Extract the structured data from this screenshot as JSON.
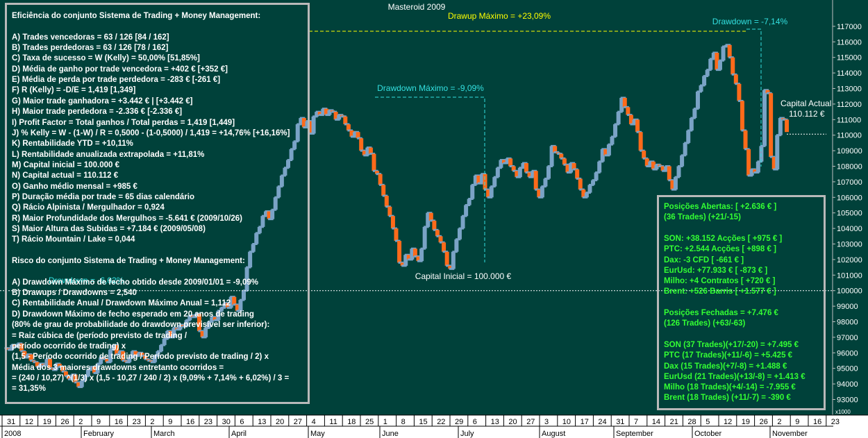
{
  "chart_data": {
    "type": "line",
    "title": "Masteroid 2009",
    "ylim": [
      92500,
      117600
    ],
    "y_ticks": [
      93000,
      94000,
      95000,
      96000,
      97000,
      98000,
      99000,
      100000,
      101000,
      102000,
      103000,
      104000,
      105000,
      106000,
      107000,
      108000,
      109000,
      110000,
      111000,
      112000,
      113000,
      114000,
      115000,
      116000,
      117000
    ],
    "y_tick_labels": [
      "93000",
      "94000",
      "95000",
      "96000",
      "97000",
      "98000",
      "99000",
      "100000",
      "101000",
      "102000",
      "103000",
      "104000",
      "105000",
      "106000",
      "107000",
      "108000",
      "109000",
      "110000",
      "111000",
      "112000",
      "113000",
      "114000",
      "115000",
      "116000",
      "117000"
    ],
    "y_scale_label": "x1000",
    "x_tick_labels": [
      "31",
      "12",
      "19",
      "26",
      "2",
      "9",
      "16",
      "23",
      "2",
      "9",
      "16",
      "23",
      "30",
      "6",
      "13",
      "20",
      "27",
      "4",
      "11",
      "18",
      "25",
      "1",
      "8",
      "15",
      "22",
      "29",
      "6",
      "13",
      "20",
      "27",
      "3",
      "10",
      "17",
      "24",
      "31",
      "7",
      "14",
      "21",
      "28",
      "5",
      "12",
      "19",
      "26",
      "2",
      "9",
      "16",
      "23"
    ],
    "x_month_labels": [
      "2008",
      "February",
      "March",
      "April",
      "May",
      "June",
      "July",
      "August",
      "September",
      "October",
      "November"
    ],
    "series": [
      {
        "colors": {
          "up": "#7aa3c6",
          "down": "#ff6a1a"
        },
        "values": [
          96300,
          96200,
          96500,
          96400,
          96600,
          96100,
          95700,
          95900,
          95500,
          95400,
          95100,
          95300,
          95200,
          95600,
          95000,
          94900,
          95300,
          95100,
          94800,
          94500,
          94300,
          94600,
          94100,
          93800,
          94200,
          94500,
          94900,
          95100,
          94700,
          95300,
          95700,
          95600,
          95400,
          96200,
          96500,
          95900,
          96100,
          95500,
          95400,
          95700,
          96100,
          95800,
          96000,
          95800,
          95600,
          95500,
          95400,
          95800,
          96100,
          96500,
          96900,
          97400,
          97000,
          97600,
          97500,
          97800,
          97700,
          98100,
          98400,
          98300,
          98500,
          97400,
          97000,
          97600,
          98000,
          98300,
          98100,
          98700,
          98900,
          99200,
          98900,
          99600,
          99100,
          98700,
          99400,
          100000,
          101500,
          102500,
          103000,
          103700,
          104100,
          104800,
          105100,
          104600,
          105200,
          106000,
          106700,
          107400,
          107900,
          108400,
          109100,
          109600,
          110700,
          111100,
          110500,
          110900,
          110100,
          111200,
          111500,
          111300,
          111700,
          111300,
          111600,
          111500,
          111000,
          111300,
          111200,
          110700,
          110300,
          109900,
          110200,
          109800,
          109000,
          108700,
          109200,
          108800,
          107700,
          107500,
          106800,
          106100,
          105400,
          104800,
          104000,
          103200,
          101800,
          101600,
          102300,
          102000,
          102700,
          102200,
          101900,
          102700,
          104100,
          105000,
          104500,
          103900,
          103500,
          103100,
          102500,
          101600,
          101400,
          102500,
          103300,
          104000,
          104800,
          105500,
          105900,
          106800,
          107400,
          106900,
          107500,
          106500,
          106000,
          106700,
          107300,
          107900,
          108400,
          108200,
          108500,
          108000,
          107700,
          107300,
          107900,
          108200,
          107600,
          107300,
          107700,
          106500,
          106000,
          106700,
          107200,
          108000,
          109300,
          108900,
          108800,
          108500,
          108100,
          107600,
          108200,
          107800,
          107200,
          106500,
          106000,
          106300,
          106800,
          107100,
          107600,
          108300,
          109100,
          108700,
          109400,
          109900,
          110700,
          111500,
          112400,
          111800,
          111300,
          110700,
          111000,
          110200,
          109000,
          108500,
          108000,
          108300,
          107800,
          108100,
          108000,
          107700,
          108000,
          107100,
          106500,
          107300,
          108000,
          108700,
          109500,
          110300,
          111100,
          111700,
          112800,
          113200,
          113800,
          114200,
          114900,
          115300,
          114200,
          114800,
          115700,
          115800,
          115000,
          113900,
          113300,
          112200,
          110300,
          109100,
          107400,
          107800,
          107600,
          108300,
          109300,
          112900,
          112700,
          108600,
          107800,
          110000,
          111100,
          111000,
          110200
        ]
      }
    ],
    "capital_initial_value": 100000,
    "capital_current_value": 110112,
    "annotations": {
      "drawup_max": "Drawup Máximo = +23,09%",
      "drawdown_max": "Drawdown Máximo = -9,09%",
      "drawdown_current": "Drawdown = -7,14%",
      "drawdown_left": "Drawdown = -6,02%",
      "capital_inicial": "Capital Inicial = 100.000 €",
      "capital_actual_label": "Capital Actual",
      "capital_actual_value": "110.112 €"
    }
  },
  "left_panel": {
    "lines": [
      "Eficiência do conjunto Sistema de Trading + Money Management:",
      "",
      "A) Trades vencedoras = 63 / 126   [84 / 162]",
      "B) Trades perdedoras = 63 / 126   [78 / 162]",
      "C) Taxa de sucesso = W (Kelly) = 50,00%   [51,85%]",
      "D) Média de ganho por trade vencedora = +402 €   [+352 €]",
      "E) Média de perda por trade perdedora = -283 €  [-261 €]",
      "F) R (Kelly) = -D/E = 1,419   [1,349]",
      "G) Maior trade ganhadora = +3.442 € | [+3.442 €]",
      "H) Maior trade perdedora = -2.336 €   [-2.336 €]",
      "I) Profit Factor = Total ganhos / Total perdas = 1,419   [1,449]",
      "J) % Kelly = W - (1-W) / R = 0,5000 - (1-0,5000) / 1,419 = +14,76%   [+16,16%]",
      "K) Rentabilidade YTD = +10,11%",
      "L) Rentabilidade anualizada extrapolada = +11,81%",
      "M) Capital inicial = 100.000 €",
      "N) Capital actual = 110.112 €",
      "O) Ganho médio mensal = +985 €",
      "P) Duração média por trade = 65 dias calendário",
      "Q) Rácio Alpinista / Mergulhador = 0,924",
      "R) Maior Profundidade dos Mergulhos = -5.641 € (2009/10/26)",
      "S) Maior Altura das Subidas = +7.184 € (2009/05/08)",
      "T) Rácio Mountain / Lake = 0,044",
      "",
      "Risco do conjunto Sistema de Trading + Money Management:",
      "",
      "A) Drawdown Máximo de fecho obtido desde 2009/01/01 = -9,09%",
      "B) Drawups / Drawdowns = 2,540",
      "C) Rentabilidade Anual / Drawdown Máximo Anual = 1,112",
      "D) Drawdown Máximo de fecho esperado em 20 anos de trading",
      "(80% de grau de probabilidade do drawdown previsível ser inferior):",
      "= Raiz cúbica de (período previsto de trading /",
      "período ocorrido de trading) x",
      "(1,5 - Período ocorrido de trading / Período previsto de trading / 2) x",
      "Média dos 3 maiores drawdowns entretanto ocorridos =",
      "= (240 / 10,27) ^(1/3) x (1,5 - 10,27 / 240 / 2) x (9,09% + 7,14% + 6,02%) / 3 =",
      "= 31,35%"
    ]
  },
  "right_panel": {
    "lines": [
      "Posições Abertas: [ +2.636 € ]",
      "(36 Trades) (+21/-15)",
      "",
      "SON: +38.152 Acções [ +975 € ]",
      "PTC: +2.544 Acções [ +898 € ]",
      "Dax: -3 CFD [ -661 € ]",
      "EurUsd: +77.933 € [ -873 € ]",
      "Milho: +4 Contratos [ +720 € ]",
      "Brent: +526 Barris [ +1.577 € ]",
      "",
      "Posições Fechadas = +7.476 €",
      "(126 Trades) (+63/-63)",
      "",
      "SON (37 Trades)(+17/-20) = +7.495 €",
      "PTC (17 Trades)(+11/-6) = +5.425 €",
      "Dax (15 Trades)(+7/-8) = +1.488 €",
      "EurUsd (21 Trades)(+13/-8) = +1.413 €",
      "Milho (18 Trades)(+4/-14) = -7.955 €",
      "Brent (18 Trades) (+11/-7) = -390 €"
    ]
  }
}
